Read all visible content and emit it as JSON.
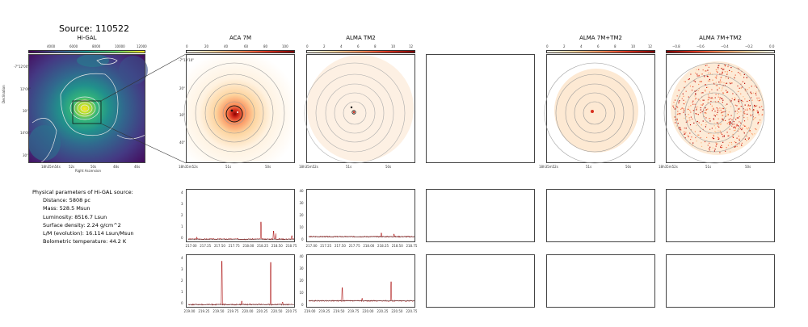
{
  "page": {
    "title": "Source: 110522"
  },
  "panels": {
    "higal": "Hi-GAL",
    "aca": "ACA 7M",
    "almatm2": "ALMA TM2",
    "alma7mtm2": "ALMA 7M+TM2",
    "alma7mtm2_diff": "ALMA 7M+TM2"
  },
  "colors": {
    "viridis_low": "#440154",
    "viridis_high": "#fde725",
    "spectrum_line": "#b22222",
    "orange_high": "#8b0000"
  },
  "higal": {
    "cbar_ticks": [
      "4000",
      "6000",
      "8000",
      "10000",
      "12000"
    ],
    "xticks": [
      "18h35m54s",
      "52s",
      "50s",
      "48s",
      "46s"
    ],
    "yticks": [
      "-7°12'00\"",
      "12'00\"",
      "30\"",
      "14'00\"",
      "30\""
    ],
    "xlabel": "Right Ascension",
    "ylabel": "Declination"
  },
  "aca": {
    "cbar_ticks": [
      "0",
      "20",
      "40",
      "60",
      "80",
      "100"
    ],
    "xticks": [
      "18h35m52s",
      "51s",
      "50s"
    ],
    "yticks": [
      "-7°13'10\"",
      "20\"",
      "30\"",
      "40\""
    ]
  },
  "tm2": {
    "cbar_ticks": [
      "0",
      "2",
      "4",
      "6",
      "8",
      "10",
      "12"
    ],
    "xticks": [
      "18h35m52s",
      "51s",
      "50s"
    ]
  },
  "c7mtm2": {
    "cbar_ticks": [
      "0",
      "2",
      "4",
      "6",
      "8",
      "10",
      "12"
    ],
    "xticks": [
      "18h35m52s",
      "51s",
      "50s"
    ]
  },
  "cdiff": {
    "cbar_ticks": [
      "−0.8",
      "−0.6",
      "−0.4",
      "−0.2",
      "0.0"
    ],
    "xticks": [
      "18h35m52s",
      "51s",
      "50s"
    ]
  },
  "info": {
    "heading": "Physical parameters of Hi-GAL source:",
    "distance": "Distance: 5808 pc",
    "mass": "Mass: 528.5 Msun",
    "luminosity": "Luminosity: 8516.7 Lsun",
    "surface_density": "Surface density: 2.24 g/cm^2",
    "lm": "L/M (evolution): 16.114 Lsun/Msun",
    "tbol": "Bolometric temperature: 44.2 K"
  },
  "chart_data": [
    {
      "type": "line",
      "panel": "ACA 7M spectrum, upper band",
      "x_ticks": [
        "217.00",
        "217.25",
        "217.50",
        "217.75",
        "218.00",
        "218.25",
        "218.50",
        "218.75"
      ],
      "y_ticks": [
        "0",
        "1",
        "2",
        "3",
        "4"
      ],
      "xlim": [
        216.95,
        218.8
      ],
      "ylim": [
        -0.2,
        4.2
      ],
      "baseline": 0.0,
      "peaks": [
        {
          "x": 217.1,
          "y": 0.2
        },
        {
          "x": 218.22,
          "y": 1.5
        },
        {
          "x": 218.44,
          "y": 0.7
        },
        {
          "x": 218.48,
          "y": 0.5
        },
        {
          "x": 218.76,
          "y": 0.3
        }
      ]
    },
    {
      "type": "line",
      "panel": "ALMA TM2 spectrum, upper band",
      "x_ticks": [
        "217.00",
        "217.25",
        "217.50",
        "217.75",
        "218.00",
        "218.25",
        "218.50",
        "218.75"
      ],
      "y_ticks": [
        "0",
        "10",
        "20",
        "30",
        "40"
      ],
      "xlim": [
        216.95,
        218.8
      ],
      "ylim": [
        -1,
        41
      ],
      "baseline": 3.0,
      "peaks": [
        {
          "x": 218.22,
          "y": 6
        },
        {
          "x": 218.44,
          "y": 5
        }
      ]
    },
    {
      "type": "line",
      "panel": "ACA 7M spectrum, lower band",
      "x_ticks": [
        "219.00",
        "219.25",
        "219.50",
        "219.75",
        "220.00",
        "220.25",
        "220.50",
        "220.75"
      ],
      "y_ticks": [
        "0",
        "1",
        "2",
        "3",
        "4"
      ],
      "xlim": [
        218.98,
        220.8
      ],
      "ylim": [
        -0.2,
        4.2
      ],
      "baseline": 0.0,
      "peaks": [
        {
          "x": 219.56,
          "y": 3.8
        },
        {
          "x": 219.9,
          "y": 0.3
        },
        {
          "x": 220.4,
          "y": 3.7
        },
        {
          "x": 220.6,
          "y": 0.2
        }
      ]
    },
    {
      "type": "line",
      "panel": "ALMA TM2 spectrum, lower band",
      "x_ticks": [
        "219.00",
        "219.25",
        "219.50",
        "219.75",
        "220.00",
        "220.25",
        "220.50",
        "220.75"
      ],
      "y_ticks": [
        "0",
        "10",
        "20",
        "30",
        "40"
      ],
      "xlim": [
        218.98,
        220.8
      ],
      "ylim": [
        -1,
        41
      ],
      "baseline": 4.0,
      "peaks": [
        {
          "x": 219.56,
          "y": 15
        },
        {
          "x": 219.9,
          "y": 6
        },
        {
          "x": 220.4,
          "y": 20
        }
      ]
    }
  ]
}
